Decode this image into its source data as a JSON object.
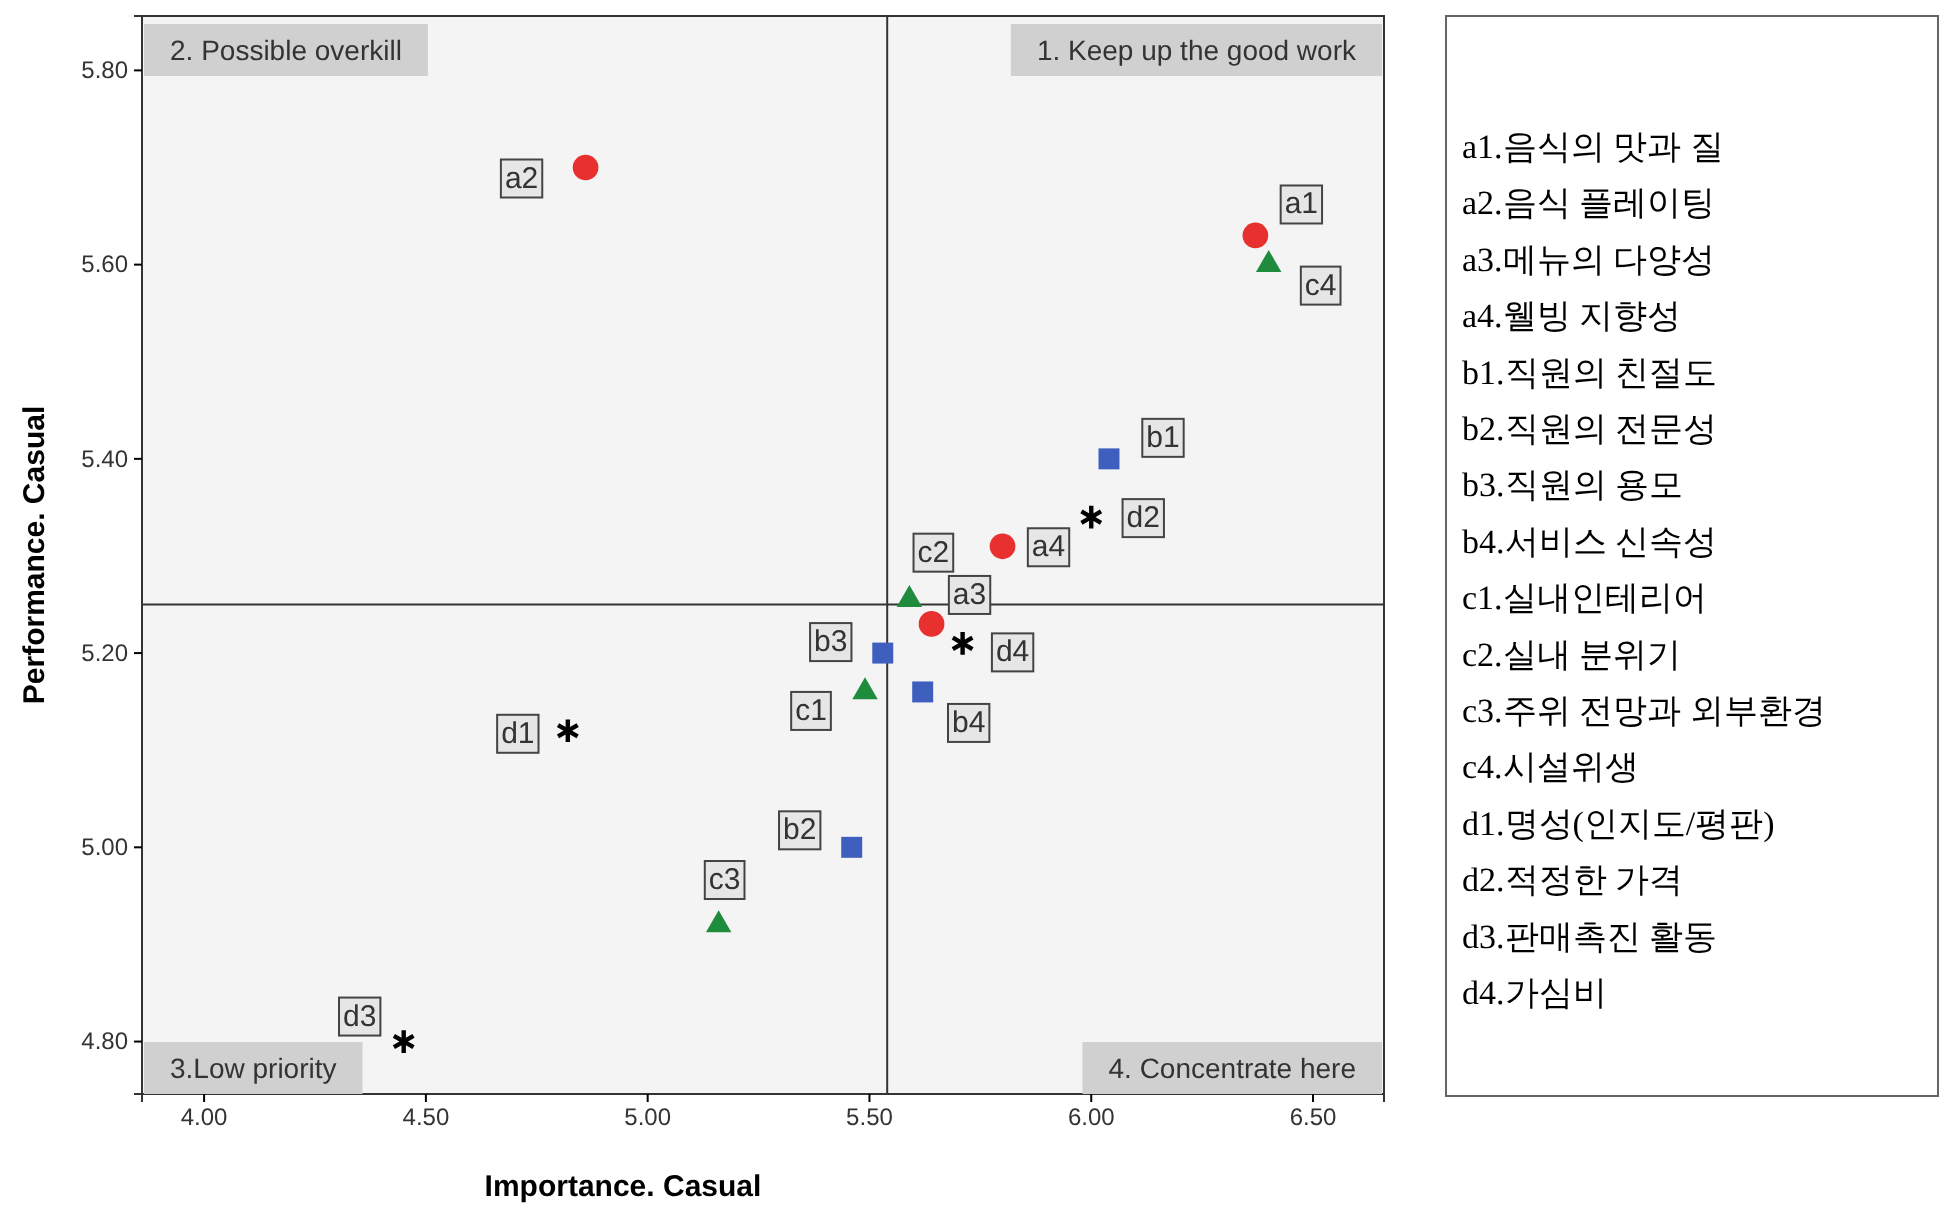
{
  "chart_data": [
    {
      "type": "scatter",
      "xlabel": "Importance. Casual",
      "ylabel": "Performance. Casual",
      "xlim": [
        3.86,
        6.66
      ],
      "ylim": [
        4.746,
        5.856
      ],
      "xticks": [
        {
          "value": 4,
          "label": "4.00"
        },
        {
          "value": 4.5,
          "label": "4.50"
        },
        {
          "value": 5,
          "label": "5.00"
        },
        {
          "value": 5.5,
          "label": "5.50"
        },
        {
          "value": 6,
          "label": "6.00"
        },
        {
          "value": 6.5,
          "label": "6.50"
        }
      ],
      "yticks": [
        {
          "value": 4.8,
          "label": "4.80"
        },
        {
          "value": 5,
          "label": "5.00"
        },
        {
          "value": 5.2,
          "label": "5.20"
        },
        {
          "value": 5.4,
          "label": "5.40"
        },
        {
          "value": 5.6,
          "label": "5.60"
        },
        {
          "value": 5.8,
          "label": "5.80"
        }
      ],
      "grid": false,
      "ref_lines": [
        {
          "axis": "x",
          "value": 5.54
        },
        {
          "axis": "y",
          "value": 5.25
        }
      ],
      "annotations": [
        "1. Keep up the good work",
        "2. Possible overkill",
        "3.Low priority",
        "4. Concentrate here"
      ],
      "series": [
        {
          "color": "#e8302f",
          "marker": "circle",
          "x": [
            6.37,
            4.86,
            5.64,
            5.8
          ],
          "values": [
            5.63,
            5.7,
            5.23,
            5.31
          ],
          "value_labels": [
            "a1",
            "a2",
            "a3",
            "a4"
          ]
        },
        {
          "color": "#3f5fbf",
          "marker": "square",
          "x": [
            6.04,
            5.46,
            5.53,
            5.62
          ],
          "values": [
            5.4,
            5.0,
            5.2,
            5.16
          ],
          "value_labels": [
            "b1",
            "b2",
            "b3",
            "b4"
          ]
        },
        {
          "color": "#1e8c3c",
          "marker": "triangle",
          "x": [
            5.49,
            5.59,
            5.16,
            6.4
          ],
          "values": [
            5.16,
            5.255,
            4.92,
            5.6
          ],
          "value_labels": [
            "c1",
            "c2",
            "c3",
            "c4"
          ]
        },
        {
          "color": "#000000",
          "marker": "cross",
          "x": [
            4.82,
            6.0,
            4.45,
            5.71
          ],
          "values": [
            5.12,
            5.34,
            4.8,
            5.21
          ],
          "value_labels": [
            "d1",
            "d2",
            "d3",
            "d4"
          ]
        }
      ]
    },
    {
      "type": "other",
      "annotations": [
        "a1.음식의 맛과 질",
        "a2.음식 플레이팅",
        "a3.메뉴의 다양성",
        "a4.웰빙 지향성",
        "b1.직원의 친절도",
        "b2.직원의 전문성",
        "b3.직원의 용모",
        "b4.서비스 신속성",
        "c1.실내인테리어",
        "c2.실내 분위기",
        "c3.주위 전망과 외부환경",
        "c4.시설위생",
        "d1.명성(인지도/평판)",
        "d2.적정한 가격",
        "d3.판매촉진 활동",
        "d4.가심비"
      ]
    }
  ]
}
